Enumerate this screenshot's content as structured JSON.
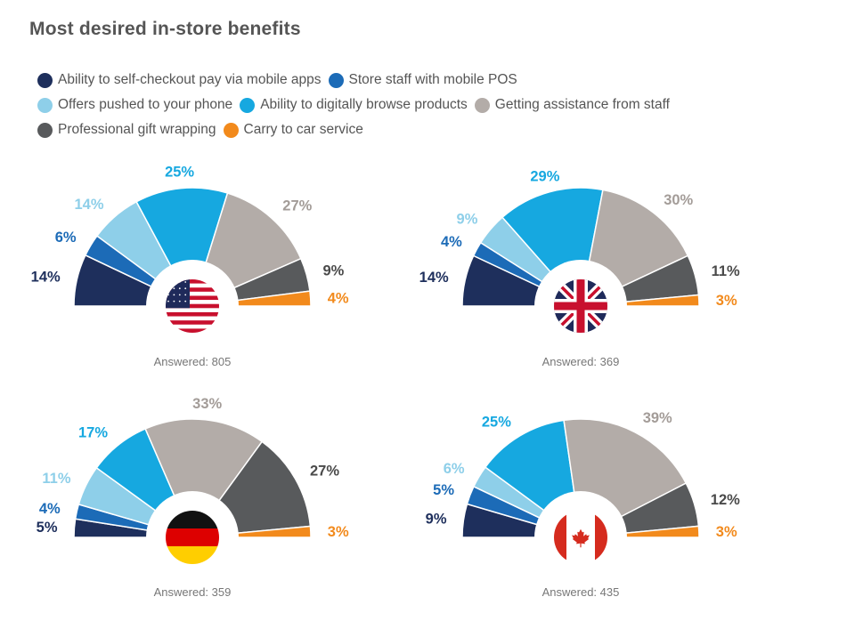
{
  "title": "Most desired in-store benefits",
  "legend": [
    {
      "label": "Ability to self-checkout pay via mobile apps",
      "color": "#1e2f5c"
    },
    {
      "label": "Store staff with mobile POS",
      "color": "#1c6bb7"
    },
    {
      "label": "Offers pushed to your phone",
      "color": "#8ecfe9"
    },
    {
      "label": "Ability to digitally browse products",
      "color": "#16a8e0"
    },
    {
      "label": "Getting assistance from staff",
      "color": "#b3aca8"
    },
    {
      "label": "Professional gift wrapping",
      "color": "#585a5c"
    },
    {
      "label": "Carry to car service",
      "color": "#f28a1c"
    }
  ],
  "label_colors": [
    "#1e2f5c",
    "#1c6bb7",
    "#8ecfe9",
    "#16a8e0",
    "#a39c98",
    "#4a4a4a",
    "#f28a1c"
  ],
  "chart_data": [
    {
      "type": "pie",
      "flag": "us-flag",
      "series": [
        "Ability to self-checkout pay via mobile apps",
        "Store staff with mobile POS",
        "Offers pushed to your phone",
        "Ability to digitally browse products",
        "Getting assistance from staff",
        "Professional gift wrapping",
        "Carry to car service"
      ],
      "values": [
        14,
        6,
        14,
        25,
        27,
        9,
        4
      ],
      "labels": [
        "14%",
        "6%",
        "14%",
        "25%",
        "27%",
        "9%",
        "4%"
      ],
      "answered": "Answered: 805"
    },
    {
      "type": "pie",
      "flag": "uk-flag",
      "series": [
        "Ability to self-checkout pay via mobile apps",
        "Store staff with mobile POS",
        "Offers pushed to your phone",
        "Ability to digitally browse products",
        "Getting assistance from staff",
        "Professional gift wrapping",
        "Carry to car service"
      ],
      "values": [
        14,
        4,
        9,
        29,
        30,
        11,
        3
      ],
      "labels": [
        "14%",
        "4%",
        "9%",
        "29%",
        "30%",
        "11%",
        "3%"
      ],
      "answered": "Answered: 369"
    },
    {
      "type": "pie",
      "flag": "germany-flag",
      "series": [
        "Ability to self-checkout pay via mobile apps",
        "Store staff with mobile POS",
        "Offers pushed to your phone",
        "Ability to digitally browse products",
        "Getting assistance from staff",
        "Professional gift wrapping",
        "Carry to car service"
      ],
      "values": [
        5,
        4,
        11,
        17,
        33,
        27,
        3
      ],
      "labels": [
        "5%",
        "4%",
        "11%",
        "17%",
        "33%",
        "27%",
        "3%"
      ],
      "answered": "Answered: 359"
    },
    {
      "type": "pie",
      "flag": "canada-flag",
      "series": [
        "Ability to self-checkout pay via mobile apps",
        "Store staff with mobile POS",
        "Offers pushed to your phone",
        "Ability to digitally browse products",
        "Getting assistance from staff",
        "Professional gift wrapping",
        "Carry to car service"
      ],
      "values": [
        9,
        5,
        6,
        25,
        39,
        12,
        3
      ],
      "labels": [
        "9%",
        "5%",
        "6%",
        "25%",
        "39%",
        "12%",
        "3%"
      ],
      "answered": "Answered: 435"
    }
  ]
}
